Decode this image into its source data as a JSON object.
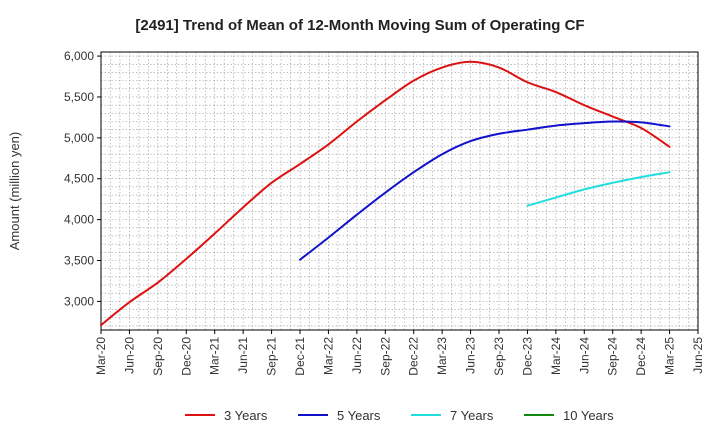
{
  "chart_data": {
    "type": "line",
    "title": "[2491]  Trend of Mean of 12-Month Moving Sum of Operating CF",
    "xlabel": "",
    "ylabel": "Amount (million yen)",
    "ylim": [
      2650,
      6050
    ],
    "yticks": [
      3000,
      3500,
      4000,
      4500,
      5000,
      5500,
      6000
    ],
    "ytick_labels": [
      "3,000",
      "3,500",
      "4,000",
      "4,500",
      "5,000",
      "5,500",
      "6,000"
    ],
    "x_start": "Mar-20",
    "x_end": "Jun-25",
    "xtick_labels": [
      "Mar-20",
      "Jun-20",
      "Sep-20",
      "Dec-20",
      "Mar-21",
      "Jun-21",
      "Sep-21",
      "Dec-21",
      "Mar-22",
      "Jun-22",
      "Sep-22",
      "Dec-22",
      "Mar-23",
      "Jun-23",
      "Sep-23",
      "Dec-23",
      "Mar-24",
      "Jun-24",
      "Sep-24",
      "Dec-24",
      "Mar-25",
      "Jun-25"
    ],
    "grid": true,
    "legend_position": "bottom",
    "series": [
      {
        "name": "3 Years",
        "color": "#dd1111",
        "points": [
          [
            "Mar-20",
            2710
          ],
          [
            "Jun-20",
            2990
          ],
          [
            "Sep-20",
            3230
          ],
          [
            "Dec-20",
            3520
          ],
          [
            "Mar-21",
            3830
          ],
          [
            "Jun-21",
            4150
          ],
          [
            "Sep-21",
            4450
          ],
          [
            "Dec-21",
            4680
          ],
          [
            "Mar-22",
            4920
          ],
          [
            "Jun-22",
            5200
          ],
          [
            "Sep-22",
            5460
          ],
          [
            "Dec-22",
            5700
          ],
          [
            "Mar-23",
            5860
          ],
          [
            "Jun-23",
            5930
          ],
          [
            "Sep-23",
            5860
          ],
          [
            "Dec-23",
            5680
          ],
          [
            "Mar-24",
            5560
          ],
          [
            "Jun-24",
            5400
          ],
          [
            "Sep-24",
            5260
          ],
          [
            "Dec-24",
            5120
          ],
          [
            "Mar-25",
            4890
          ]
        ]
      },
      {
        "name": "5 Years",
        "color": "#1111cc",
        "points": [
          [
            "Dec-21",
            3510
          ],
          [
            "Mar-22",
            3780
          ],
          [
            "Jun-22",
            4060
          ],
          [
            "Sep-22",
            4330
          ],
          [
            "Dec-22",
            4580
          ],
          [
            "Mar-23",
            4800
          ],
          [
            "Jun-23",
            4960
          ],
          [
            "Sep-23",
            5050
          ],
          [
            "Dec-23",
            5100
          ],
          [
            "Mar-24",
            5150
          ],
          [
            "Jun-24",
            5180
          ],
          [
            "Sep-24",
            5200
          ],
          [
            "Dec-24",
            5190
          ],
          [
            "Mar-25",
            5140
          ]
        ]
      },
      {
        "name": "7 Years",
        "color": "#22dddd",
        "points": [
          [
            "Dec-23",
            4170
          ],
          [
            "Mar-24",
            4270
          ],
          [
            "Jun-24",
            4370
          ],
          [
            "Sep-24",
            4450
          ],
          [
            "Dec-24",
            4520
          ],
          [
            "Mar-25",
            4580
          ]
        ]
      },
      {
        "name": "10 Years",
        "color": "#118811",
        "points": []
      }
    ]
  }
}
